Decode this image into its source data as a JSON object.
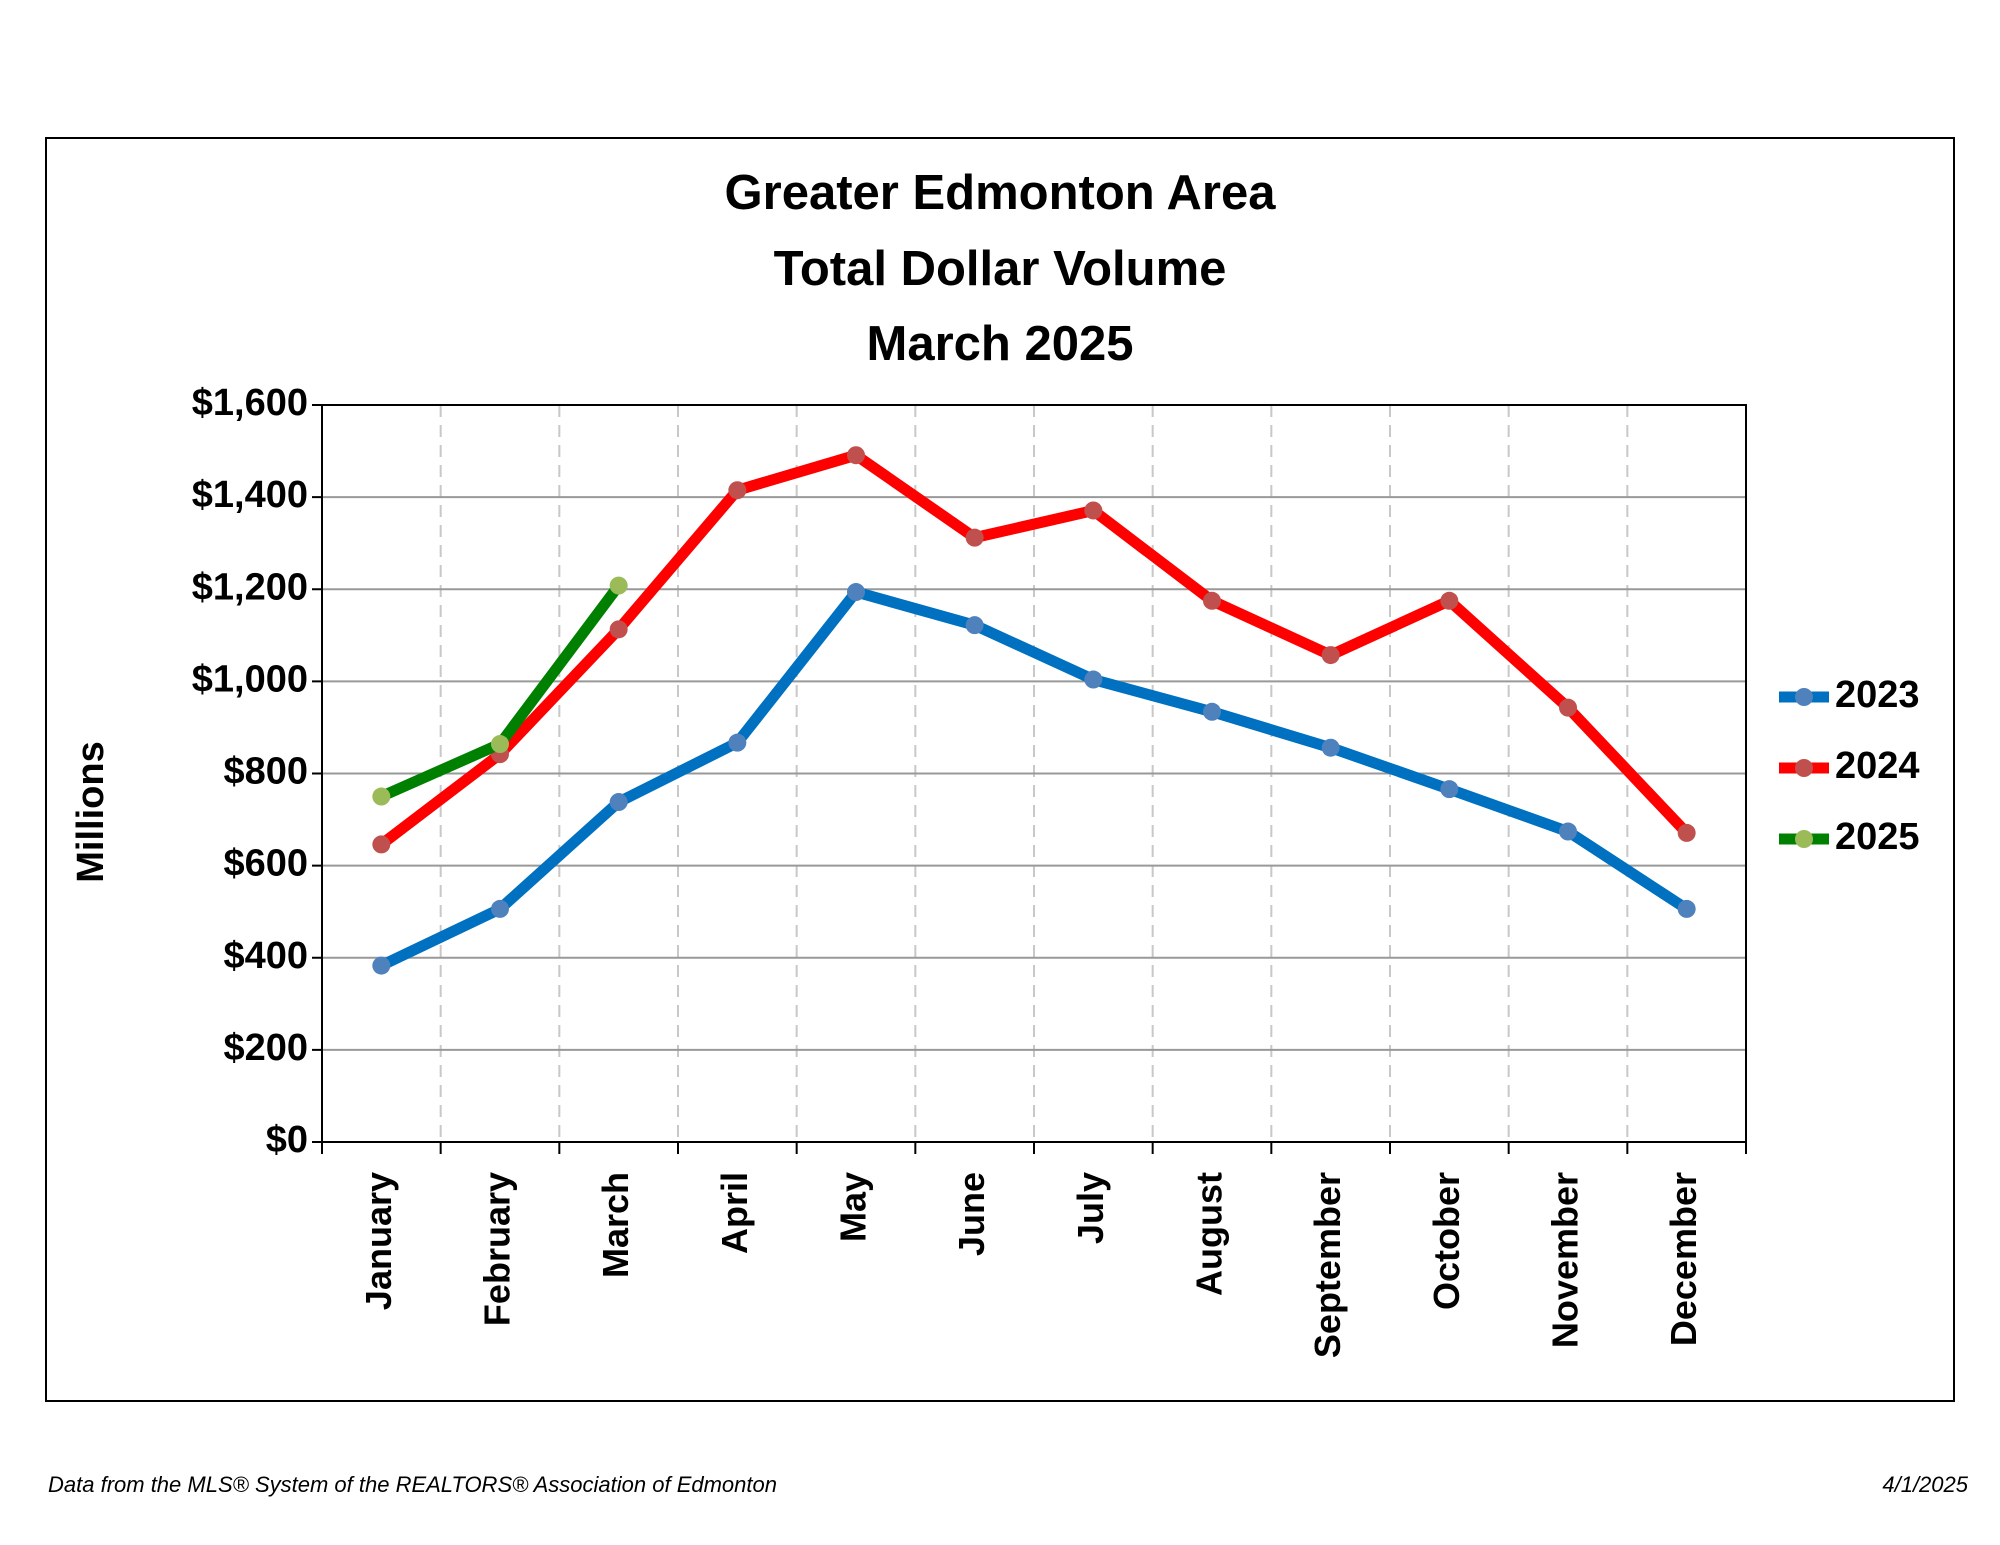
{
  "chart_data": {
    "type": "line",
    "title": [
      "Greater Edmonton Area",
      "Total Dollar Volume",
      "March 2025"
    ],
    "y_label": "Millions",
    "categories": [
      "January",
      "February",
      "March",
      "April",
      "May",
      "June",
      "July",
      "August",
      "September",
      "October",
      "November",
      "December"
    ],
    "series": [
      {
        "name": "2023",
        "color": "#0070c0",
        "marker_color": "#4f81bd",
        "values": [
          383,
          506,
          738,
          867,
          1194,
          1122,
          1004,
          934,
          856,
          766,
          674,
          506
        ]
      },
      {
        "name": "2024",
        "color": "#ff0000",
        "marker_color": "#c0504d",
        "values": [
          646,
          842,
          1113,
          1415,
          1491,
          1312,
          1371,
          1175,
          1057,
          1175,
          943,
          671
        ]
      },
      {
        "name": "2025",
        "color": "#008000",
        "marker_color": "#9bbb59",
        "values": [
          750,
          864,
          1208,
          null,
          null,
          null,
          null,
          null,
          null,
          null,
          null,
          null
        ]
      }
    ],
    "ylim": [
      0,
      1600
    ],
    "yticks": [
      {
        "value": 0,
        "label": "$0"
      },
      {
        "value": 200,
        "label": "$200"
      },
      {
        "value": 400,
        "label": "$400"
      },
      {
        "value": 600,
        "label": "$600"
      },
      {
        "value": 800,
        "label": "$800"
      },
      {
        "value": 1000,
        "label": "$1,000"
      },
      {
        "value": 1200,
        "label": "$1,200"
      },
      {
        "value": 1400,
        "label": "$1,400"
      },
      {
        "value": 1600,
        "label": "$1,600"
      }
    ],
    "grid": true,
    "legend": "right"
  },
  "footer": {
    "source": "Data from the MLS® System of the REALTORS® Association of Edmonton",
    "date": "4/1/2025"
  }
}
